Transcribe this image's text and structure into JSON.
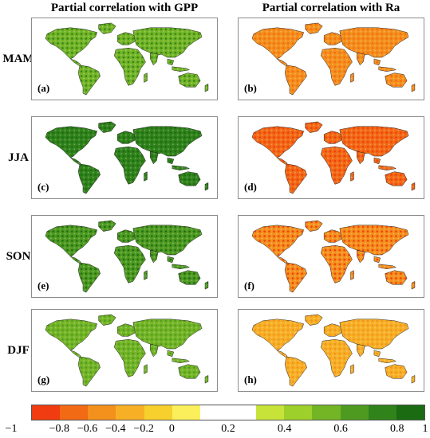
{
  "titles": {
    "left": "Partial correlation with GPP",
    "right": "Partial correlation with Ra"
  },
  "rows": [
    {
      "season": "MAM",
      "left_label": "(a)",
      "right_label": "(b)",
      "gpp_intensity": 0.45,
      "ra_intensity": 0.55
    },
    {
      "season": "JJA",
      "left_label": "(c)",
      "right_label": "(d)",
      "gpp_intensity": 0.8,
      "ra_intensity": 0.8
    },
    {
      "season": "SON",
      "left_label": "(e)",
      "right_label": "(f)",
      "gpp_intensity": 0.65,
      "ra_intensity": 0.65
    },
    {
      "season": "DJF",
      "left_label": "(g)",
      "right_label": "(h)",
      "gpp_intensity": 0.3,
      "ra_intensity": 0.35
    }
  ],
  "colorbar": {
    "colors": [
      "#f03c10",
      "#f26a14",
      "#f4901c",
      "#f7b025",
      "#f8d02e",
      "#fbf05c",
      "#ffffff",
      "#ffffff",
      "#c7e33a",
      "#9ed02c",
      "#74b526",
      "#4e9a20",
      "#30821a",
      "#1b6b12"
    ],
    "ticks": [
      "−1",
      "−0.8",
      "−0.6",
      "−0.4",
      "−0.2",
      "0",
      "0.2",
      "0.4",
      "0.6",
      "0.8",
      "1"
    ]
  }
}
